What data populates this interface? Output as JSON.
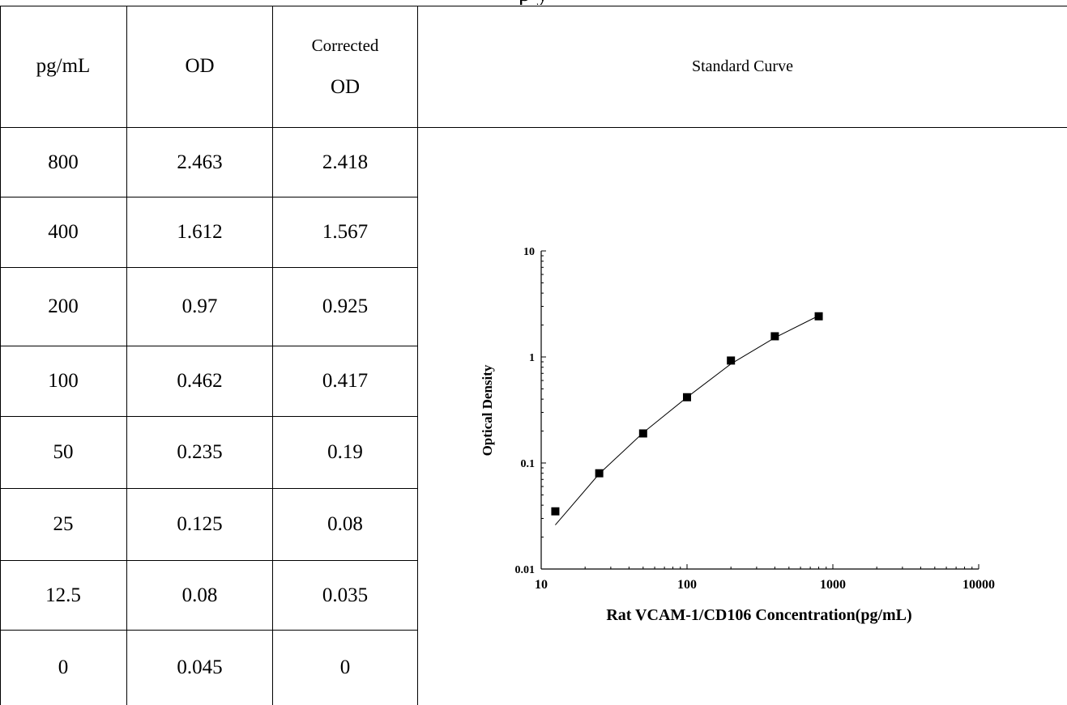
{
  "title_fragment": "p                                                        y",
  "table": {
    "headers": {
      "conc": "pg/mL",
      "od": "OD",
      "corrected_line1": "Corrected",
      "corrected_line2": "OD",
      "chart": "Standard Curve"
    },
    "rows": [
      {
        "conc": "800",
        "od": "2.463",
        "corrected": "2.418"
      },
      {
        "conc": "400",
        "od": "1.612",
        "corrected": "1.567"
      },
      {
        "conc": "200",
        "od": "0.97",
        "corrected": "0.925"
      },
      {
        "conc": "100",
        "od": "0.462",
        "corrected": "0.417"
      },
      {
        "conc": "50",
        "od": "0.235",
        "corrected": "0.19"
      },
      {
        "conc": "25",
        "od": "0.125",
        "corrected": "0.08"
      },
      {
        "conc": "12.5",
        "od": "0.08",
        "corrected": "0.035"
      },
      {
        "conc": "0",
        "od": "0.045",
        "corrected": "0"
      }
    ]
  },
  "chart_data": {
    "type": "scatter",
    "title": "",
    "xlabel": "Rat VCAM-1/CD106 Concentration(pg/mL)",
    "ylabel": "Optical Density",
    "x_scale": "log",
    "y_scale": "log",
    "xlim": [
      10,
      10000
    ],
    "ylim": [
      0.01,
      10
    ],
    "x_ticks": [
      "10",
      "100",
      "1000",
      "10000"
    ],
    "y_ticks": [
      "0.01",
      "0.1",
      "1",
      "10"
    ],
    "grid": false,
    "series": [
      {
        "x": [
          12.5,
          25,
          50,
          100,
          200,
          400,
          800
        ],
        "y": [
          0.035,
          0.08,
          0.19,
          0.417,
          0.925,
          1.567,
          2.418
        ]
      }
    ],
    "fit_curve": {
      "x": [
        12.5,
        25,
        50,
        100,
        200,
        400,
        800
      ],
      "y": [
        0.026,
        0.079,
        0.193,
        0.417,
        0.86,
        1.52,
        2.45
      ]
    }
  }
}
